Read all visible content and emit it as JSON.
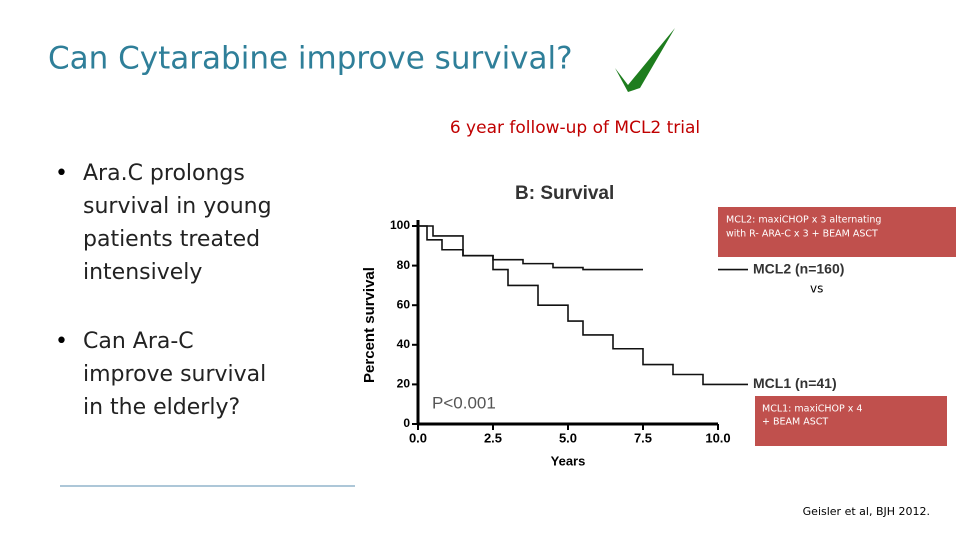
{
  "slide": {
    "title": "Can Cytarabine improve survival?",
    "subtitle": "6 year follow-up of MCL2 trial",
    "bullets": [
      [
        "Ara.C prolongs",
        "survival in young",
        "patients treated",
        "intensively"
      ],
      [
        "Can Ara-C",
        "improve survival",
        "in the elderly?"
      ]
    ],
    "box_top": [
      "MCL2: maxiCHOP x 3 alternating",
      "with R- ARA-C x 3 + BEAM ASCT"
    ],
    "versus": "vs",
    "box_bottom": [
      "MCL1: maxiCHOP x 4",
      "+ BEAM ASCT"
    ],
    "citation": "Geisler et al, BJH 2012."
  },
  "chart_data": {
    "type": "line",
    "step": true,
    "title": "B: Survival",
    "x_label": "Years",
    "y_label": "Percent survival",
    "annotation": "P<0.001",
    "series": [
      {
        "name": "MCL2 (n=160)",
        "color": "#111111",
        "x": [
          0,
          0.3,
          0.8,
          1.5,
          2.5,
          3.5,
          4.5,
          5.5,
          7.5
        ],
        "values": [
          100,
          93,
          88,
          85,
          83,
          81,
          79,
          78,
          78
        ]
      },
      {
        "name": "MCL1 (n=41)",
        "color": "#111111",
        "x": [
          0,
          0.5,
          1.5,
          2.5,
          3,
          4,
          5,
          5.5,
          6.5,
          7.5,
          8.5,
          9.5,
          10
        ],
        "values": [
          100,
          95,
          85,
          78,
          70,
          60,
          52,
          45,
          38,
          30,
          25,
          20,
          20
        ]
      }
    ],
    "xlim": [
      0,
      10
    ],
    "ylim": [
      0,
      100
    ],
    "xticks": [
      {
        "value": 0,
        "label": "0.0"
      },
      {
        "value": 2.5,
        "label": "2.5"
      },
      {
        "value": 5,
        "label": "5.0"
      },
      {
        "value": 7.5,
        "label": "7.5"
      },
      {
        "value": 10,
        "label": "10.0"
      }
    ],
    "yticks": [
      0,
      20,
      40,
      60,
      80,
      100
    ]
  }
}
